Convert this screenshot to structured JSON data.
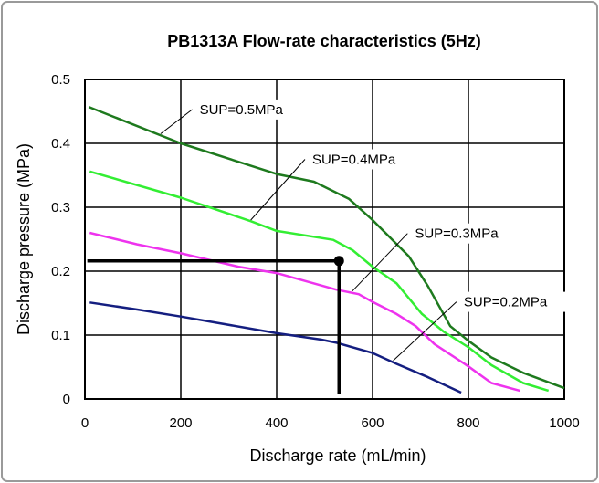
{
  "chart_data": {
    "type": "line",
    "title": "PB1313A Flow-rate characteristics (5Hz)",
    "xlabel": "Discharge rate (mL/min)",
    "ylabel": "Discharge pressure (MPa)",
    "xlim": [
      0,
      1000
    ],
    "ylim": [
      0,
      0.5
    ],
    "xticks": [
      0,
      200,
      400,
      600,
      800,
      1000
    ],
    "yticks": [
      0,
      0.1,
      0.2,
      0.3,
      0.4,
      0.5
    ],
    "xtick_labels": [
      "0",
      "200",
      "400",
      "600",
      "800",
      "1000"
    ],
    "ytick_labels": [
      "0",
      "0.1",
      "0.2",
      "0.3",
      "0.4",
      "0.5"
    ],
    "grid": true,
    "legend": "none",
    "series": [
      {
        "name": "SUP=0.5MPa",
        "color": "#1e7a1e",
        "x": [
          8,
          200,
          400,
          478,
          551,
          600,
          676,
          716,
          762,
          800,
          848,
          914,
          1000
        ],
        "y": [
          0.457,
          0.4,
          0.352,
          0.34,
          0.313,
          0.28,
          0.223,
          0.176,
          0.114,
          0.091,
          0.065,
          0.041,
          0.017
        ],
        "label_pos": [
          224,
          0.453
        ],
        "leader_from": [
          158,
          0.415
        ]
      },
      {
        "name": "SUP=0.4MPa",
        "color": "#33ee33",
        "x": [
          10,
          200,
          347,
          400,
          518,
          558,
          600,
          650,
          703,
          749,
          800,
          848,
          914,
          967
        ],
        "y": [
          0.356,
          0.315,
          0.278,
          0.263,
          0.249,
          0.233,
          0.207,
          0.181,
          0.133,
          0.105,
          0.081,
          0.053,
          0.025,
          0.013
        ],
        "label_pos": [
          459,
          0.375
        ],
        "leader_from": [
          346,
          0.28
        ]
      },
      {
        "name": "SUP=0.3MPa",
        "color": "#ee33ee",
        "x": [
          10,
          109,
          200,
          320,
          400,
          525,
          571,
          600,
          650,
          690,
          729,
          800,
          848,
          907
        ],
        "y": [
          0.26,
          0.242,
          0.228,
          0.207,
          0.197,
          0.171,
          0.164,
          0.152,
          0.133,
          0.114,
          0.086,
          0.051,
          0.025,
          0.013
        ],
        "label_pos": [
          673,
          0.259
        ],
        "leader_from": [
          558,
          0.169
        ]
      },
      {
        "name": "SUP=0.2MPa",
        "color": "#141e80",
        "x": [
          10,
          109,
          200,
          400,
          492,
          525,
          600,
          650,
          716,
          785
        ],
        "y": [
          0.151,
          0.14,
          0.129,
          0.103,
          0.093,
          0.088,
          0.072,
          0.055,
          0.034,
          0.01
        ],
        "label_pos": [
          775,
          0.152
        ],
        "leader_from": [
          643,
          0.06
        ]
      }
    ],
    "operating_point": {
      "x": 530,
      "y": 0.216,
      "color": "#000000"
    }
  }
}
